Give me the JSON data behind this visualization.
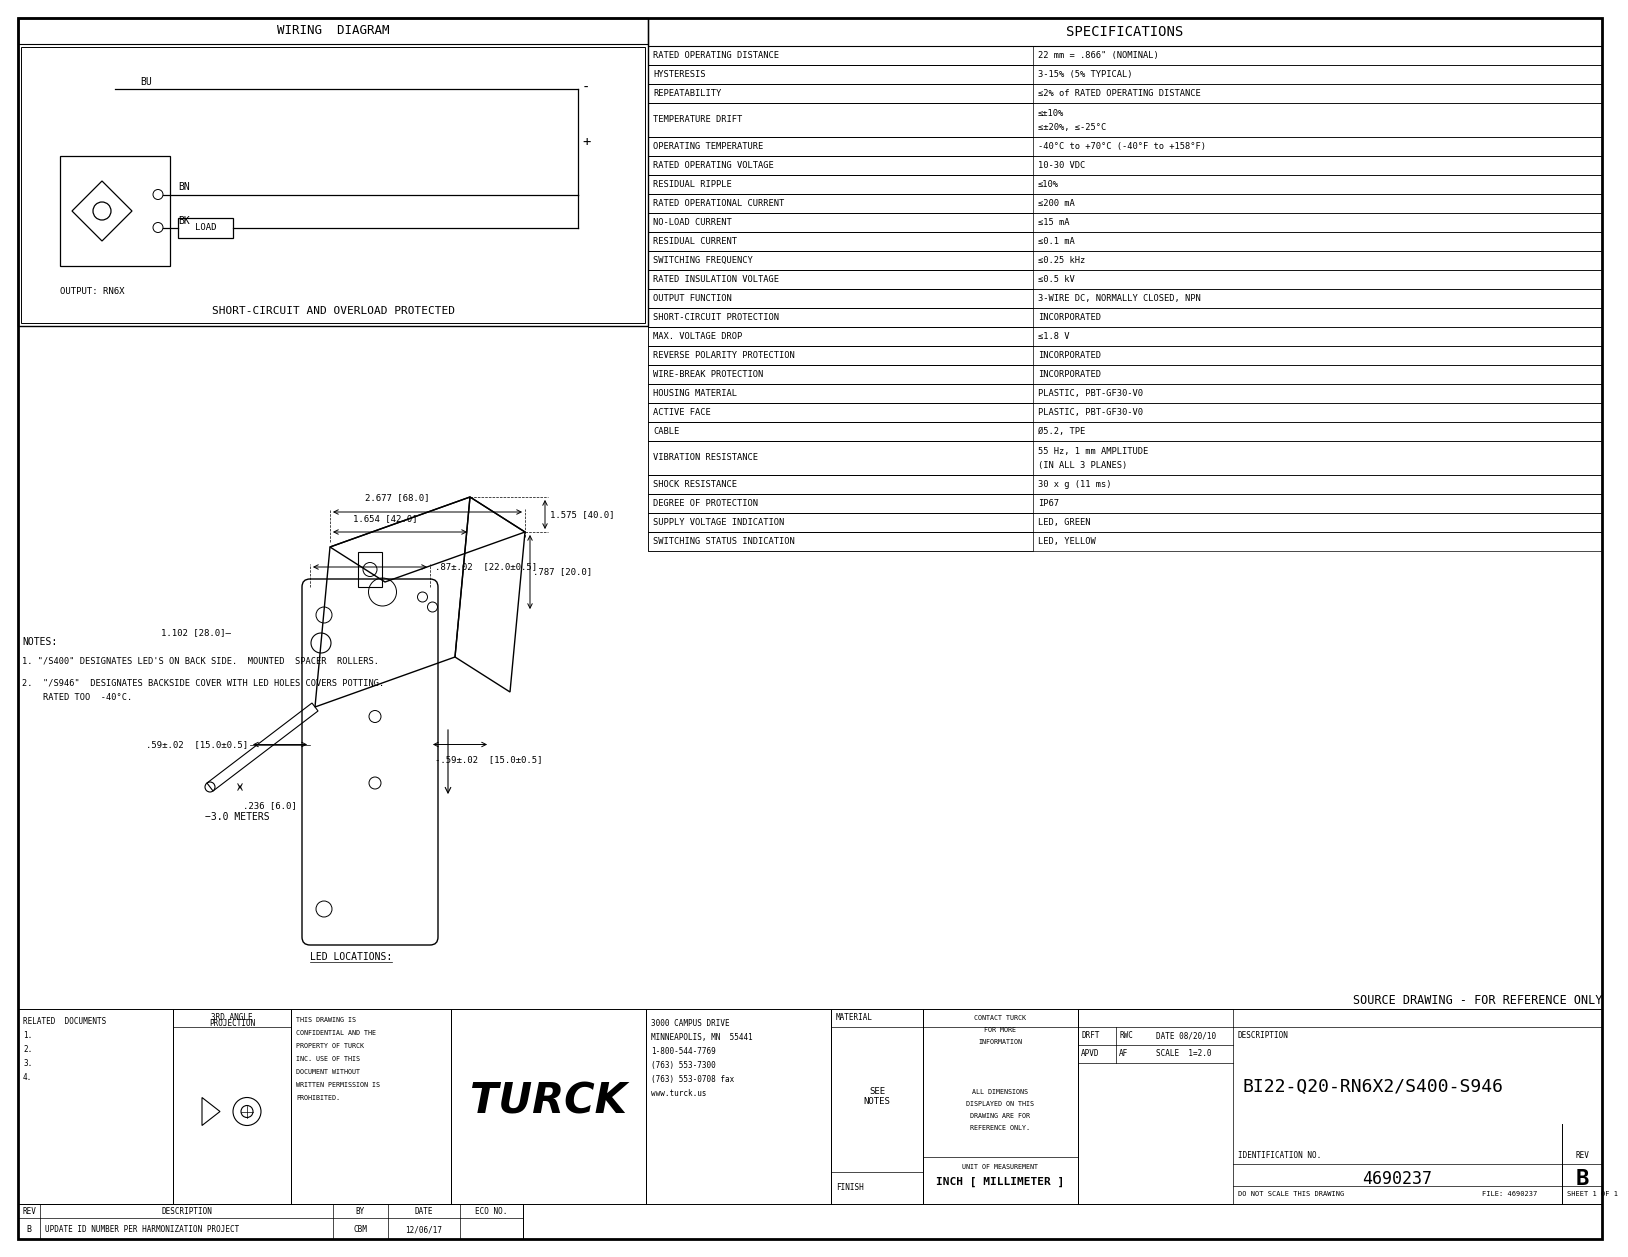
{
  "bg_color": "#ffffff",
  "specs_title": "SPECIFICATIONS",
  "specs": [
    [
      "RATED OPERATING DISTANCE",
      "22 mm = .866\" (NOMINAL)"
    ],
    [
      "HYSTERESIS",
      "3-15% (5% TYPICAL)"
    ],
    [
      "REPEATABILITY",
      "≤2% of RATED OPERATING DISTANCE"
    ],
    [
      "TEMPERATURE DRIFT",
      "≤±10%\n≤±20%, ≤-25°C"
    ],
    [
      "OPERATING TEMPERATURE",
      "-40°C to +70°C (-40°F to +158°F)"
    ],
    [
      "RATED OPERATING VOLTAGE",
      "10-30 VDC"
    ],
    [
      "RESIDUAL RIPPLE",
      "≤10%"
    ],
    [
      "RATED OPERATIONAL CURRENT",
      "≤200 mA"
    ],
    [
      "NO-LOAD CURRENT",
      "≤15 mA"
    ],
    [
      "RESIDUAL CURRENT",
      "≤0.1 mA"
    ],
    [
      "SWITCHING FREQUENCY",
      "≤0.25 kHz"
    ],
    [
      "RATED INSULATION VOLTAGE",
      "≤0.5 kV"
    ],
    [
      "OUTPUT FUNCTION",
      "3-WIRE DC, NORMALLY CLOSED, NPN"
    ],
    [
      "SHORT-CIRCUIT PROTECTION",
      "INCORPORATED"
    ],
    [
      "MAX. VOLTAGE DROP",
      "≤1.8 V"
    ],
    [
      "REVERSE POLARITY PROTECTION",
      "INCORPORATED"
    ],
    [
      "WIRE-BREAK PROTECTION",
      "INCORPORATED"
    ],
    [
      "HOUSING MATERIAL",
      "PLASTIC, PBT-GF30-V0"
    ],
    [
      "ACTIVE FACE",
      "PLASTIC, PBT-GF30-V0"
    ],
    [
      "CABLE",
      "Ø5.2, TPE"
    ],
    [
      "VIBRATION RESISTANCE",
      "55 Hz, 1 mm AMPLITUDE\n(IN ALL 3 PLANES)"
    ],
    [
      "SHOCK RESISTANCE",
      "30 x g (11 ms)"
    ],
    [
      "DEGREE OF PROTECTION",
      "IP67"
    ],
    [
      "SUPPLY VOLTAGE INDICATION",
      "LED, GREEN"
    ],
    [
      "SWITCHING STATUS INDICATION",
      "LED, YELLOW"
    ]
  ],
  "wiring_title": "WIRING  DIAGRAM",
  "wiring_subtitle": "SHORT-CIRCUIT AND OVERLOAD PROTECTED",
  "output_label": "OUTPUT: RN6X",
  "led_title": "LED LOCATIONS:",
  "source_drawing": "SOURCE DRAWING - FOR REFERENCE ONLY",
  "notes_title": "NOTES:",
  "note1": "1. \"/S400\" DESIGNATES LED'S ON BACK SIDE.  MOUNTED  SPACER  ROLLERS.",
  "note2a": "2.  \"/S946\"  DESIGNATES BACKSIDE COVER WITH LED HOLES COVERS POTTING.",
  "note2b": "    RATED TOO  -40°C.",
  "footer_related": "RELATED  DOCUMENTS",
  "footer_1": "1.",
  "footer_2": "2.",
  "footer_3": "3.",
  "footer_4": "4.",
  "footer_proj": "3RD ANGLE\nPROJECTION",
  "footer_conf": "THIS DRAWING IS\nCONFIDENTIAL AND THE\nPROPERTY OF TURCK\nINC. USE OF THIS\nDOCUMENT WITHOUT\nWRITTEN PERMISSION IS\nPROHIBITED.",
  "footer_turck": "TURCK",
  "footer_addr": "3000 CAMPUS DRIVE\nMINNEAPOLIS, MN  55441\n1-800-544-7769\n(763) 553-7300\n(763) 553-0708 fax\nwww.turck.us",
  "footer_material": "MATERIAL",
  "footer_see_notes": "SEE\nNOTES",
  "footer_finish": "FINISH",
  "footer_all_dims": "ALL DIMENSIONS\nDISPLAYED ON THIS\nDRAWING ARE FOR\nREFERENCE ONLY.",
  "footer_unit": "UNIT OF MEASUREMENT",
  "footer_inch": "INCH [ MILLIMETER ]",
  "footer_contact": "CONTACT TURCK\nFOR MORE\nINFORMATION",
  "footer_do_not": "DO NOT SCALE THIS DRAWING",
  "footer_drft": "DRFT",
  "footer_rwc": "RWC",
  "footer_date": "DATE 08/20/10",
  "footer_desc_label": "DESCRIPTION",
  "footer_desc_val": "BI22-Q20-RN6X2/S400-S946",
  "footer_apvd": "APVD",
  "footer_af": "AF",
  "footer_scale": "SCALE  1=2.0",
  "footer_id_label": "IDENTIFICATION NO.",
  "footer_id_val": "4690237",
  "footer_rev_label": "REV",
  "footer_rev_val": "B",
  "footer_file": "FILE: 4690237",
  "footer_sheet": "SHEET 1 OF 1",
  "rev_b": "B",
  "rev_desc": "UPDATE ID NUMBER PER HARMONIZATION PROJECT",
  "rev_by": "CBM",
  "rev_date": "12/06/17",
  "rev_col_rev": "REV",
  "rev_col_desc": "DESCRIPTION",
  "rev_col_by": "BY",
  "rev_col_date": "DATE",
  "rev_col_eco": "ECO NO."
}
